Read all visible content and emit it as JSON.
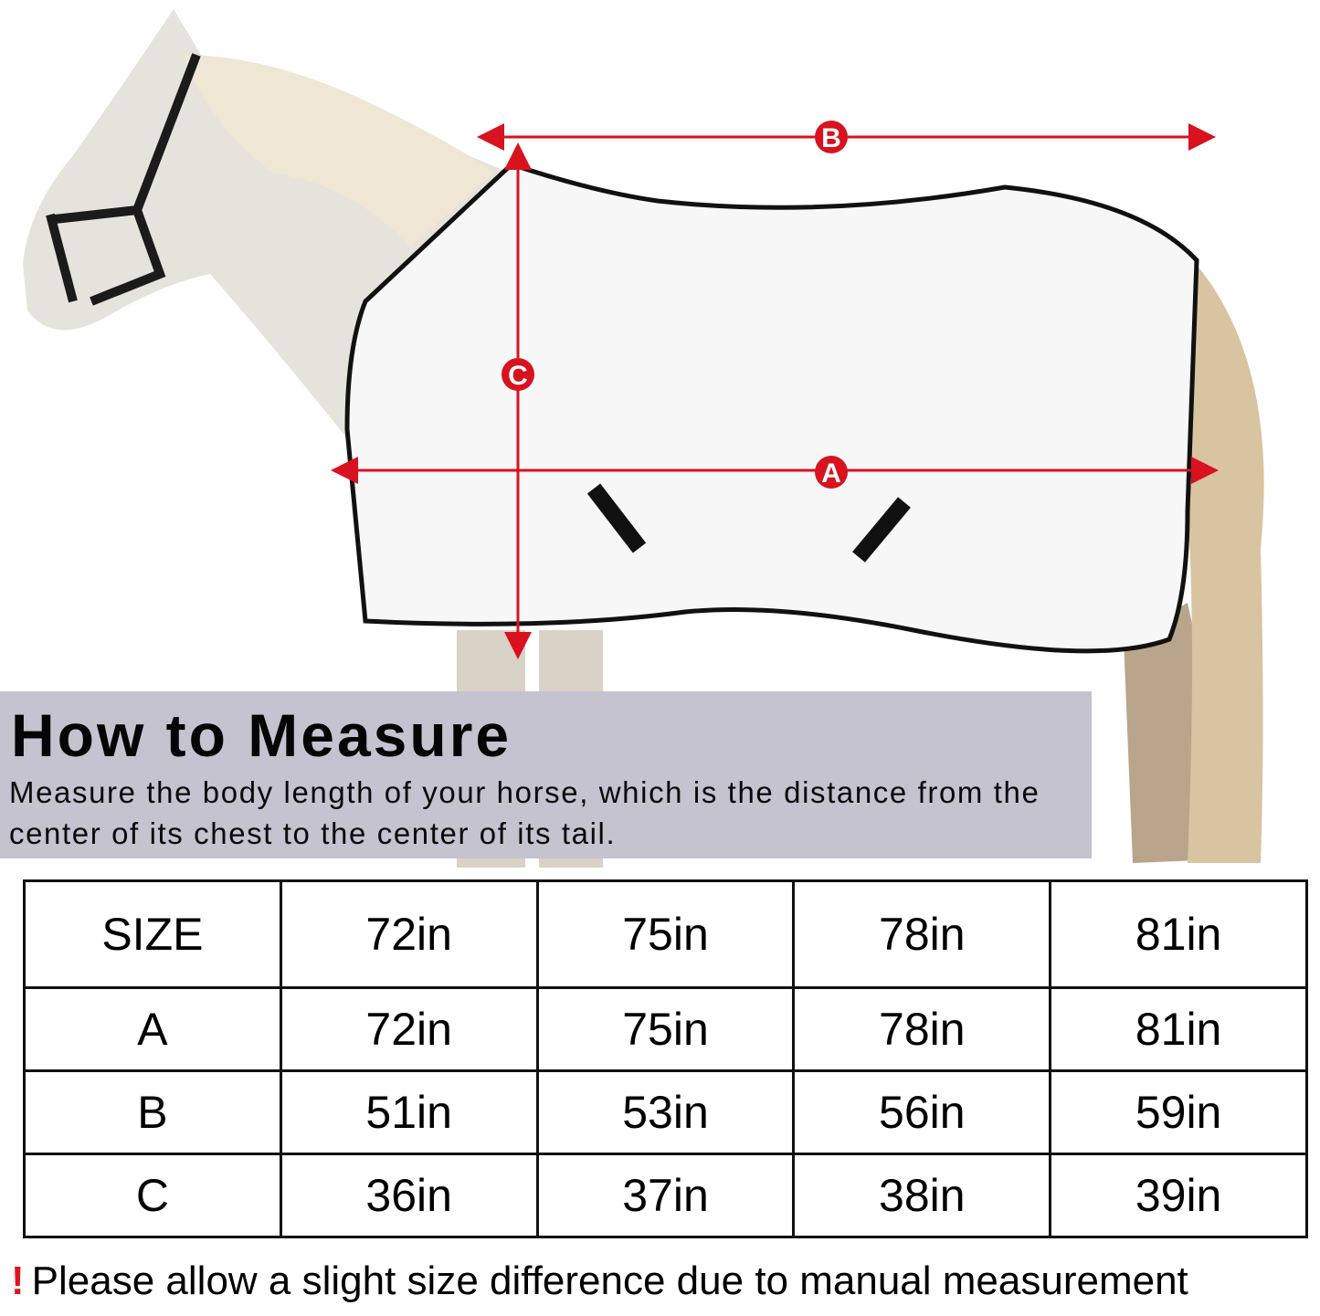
{
  "image": {
    "subject": "horse-wearing-fly-sheet",
    "accent_color": "#d8121f"
  },
  "measure_labels": {
    "a": "A",
    "b": "B",
    "c": "C"
  },
  "how_to": {
    "title": "How to Measure",
    "description": "Measure the body length of your horse, which is the distance from the center of its chest to the center of its tail."
  },
  "size_table": {
    "header": [
      "SIZE",
      "72in",
      "75in",
      "78in",
      "81in"
    ],
    "rows": [
      [
        "A",
        "72in",
        "75in",
        "78in",
        "81in"
      ],
      [
        "B",
        "51in",
        "53in",
        "56in",
        "59in"
      ],
      [
        "C",
        "36in",
        "37in",
        "38in",
        "39in"
      ]
    ]
  },
  "note": {
    "icon": "exclamation-icon",
    "mark": "!",
    "text": "Please allow a slight size difference due to manual measurement"
  }
}
